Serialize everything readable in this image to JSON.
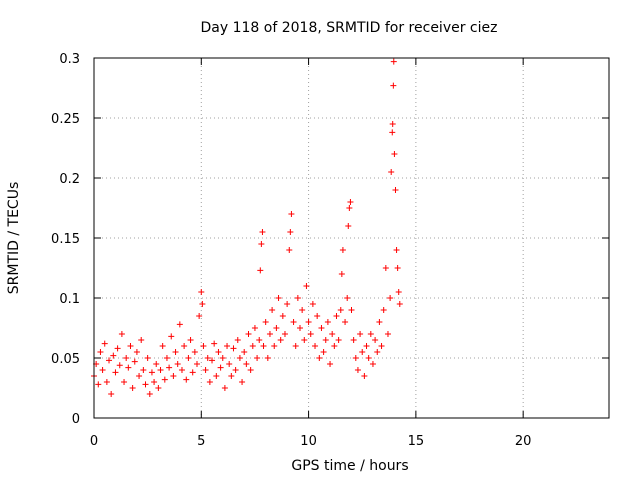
{
  "chart_data": {
    "type": "scatter",
    "title": "Day 118 of 2018, SRMTID for receiver ciez",
    "xlabel": "GPS time / hours",
    "ylabel": "SRMTID / TECUs",
    "xlim": [
      0,
      24
    ],
    "ylim": [
      0,
      0.3
    ],
    "xticks": [
      0,
      5,
      10,
      15,
      20
    ],
    "yticks": [
      0,
      0.05,
      0.1,
      0.15,
      0.2,
      0.25,
      0.3
    ],
    "xtick_labels": [
      "0",
      "5",
      "10",
      "15",
      "20"
    ],
    "ytick_labels": [
      "0",
      "0.05",
      "0.1",
      "0.15",
      "0.2",
      "0.25",
      "0.3"
    ],
    "grid": true,
    "marker": "+",
    "color": "#ff0000",
    "series": [
      {
        "name": "SRMTID",
        "points": [
          [
            0.0,
            0.035
          ],
          [
            0.1,
            0.045
          ],
          [
            0.2,
            0.028
          ],
          [
            0.3,
            0.055
          ],
          [
            0.4,
            0.04
          ],
          [
            0.5,
            0.062
          ],
          [
            0.6,
            0.03
          ],
          [
            0.7,
            0.048
          ],
          [
            0.8,
            0.02
          ],
          [
            0.9,
            0.052
          ],
          [
            1.0,
            0.038
          ],
          [
            1.1,
            0.058
          ],
          [
            1.2,
            0.044
          ],
          [
            1.3,
            0.07
          ],
          [
            1.4,
            0.03
          ],
          [
            1.5,
            0.05
          ],
          [
            1.6,
            0.042
          ],
          [
            1.7,
            0.06
          ],
          [
            1.8,
            0.025
          ],
          [
            1.9,
            0.047
          ],
          [
            2.0,
            0.055
          ],
          [
            2.1,
            0.035
          ],
          [
            2.2,
            0.065
          ],
          [
            2.3,
            0.04
          ],
          [
            2.4,
            0.028
          ],
          [
            2.5,
            0.05
          ],
          [
            2.6,
            0.02
          ],
          [
            2.7,
            0.038
          ],
          [
            2.8,
            0.03
          ],
          [
            2.9,
            0.045
          ],
          [
            3.0,
            0.025
          ],
          [
            3.1,
            0.04
          ],
          [
            3.2,
            0.06
          ],
          [
            3.3,
            0.032
          ],
          [
            3.4,
            0.05
          ],
          [
            3.5,
            0.042
          ],
          [
            3.6,
            0.068
          ],
          [
            3.7,
            0.035
          ],
          [
            3.8,
            0.055
          ],
          [
            3.9,
            0.045
          ],
          [
            4.0,
            0.078
          ],
          [
            4.1,
            0.04
          ],
          [
            4.2,
            0.06
          ],
          [
            4.3,
            0.032
          ],
          [
            4.4,
            0.05
          ],
          [
            4.5,
            0.065
          ],
          [
            4.6,
            0.038
          ],
          [
            4.7,
            0.055
          ],
          [
            4.8,
            0.045
          ],
          [
            4.9,
            0.085
          ],
          [
            5.0,
            0.105
          ],
          [
            5.05,
            0.095
          ],
          [
            5.1,
            0.06
          ],
          [
            5.2,
            0.04
          ],
          [
            5.3,
            0.05
          ],
          [
            5.4,
            0.03
          ],
          [
            5.5,
            0.048
          ],
          [
            5.6,
            0.062
          ],
          [
            5.7,
            0.035
          ],
          [
            5.8,
            0.055
          ],
          [
            5.9,
            0.042
          ],
          [
            6.0,
            0.05
          ],
          [
            6.1,
            0.025
          ],
          [
            6.2,
            0.06
          ],
          [
            6.3,
            0.045
          ],
          [
            6.4,
            0.035
          ],
          [
            6.5,
            0.058
          ],
          [
            6.6,
            0.04
          ],
          [
            6.7,
            0.065
          ],
          [
            6.8,
            0.05
          ],
          [
            6.9,
            0.03
          ],
          [
            7.0,
            0.055
          ],
          [
            7.1,
            0.045
          ],
          [
            7.2,
            0.07
          ],
          [
            7.3,
            0.04
          ],
          [
            7.4,
            0.06
          ],
          [
            7.5,
            0.075
          ],
          [
            7.6,
            0.05
          ],
          [
            7.7,
            0.065
          ],
          [
            7.75,
            0.123
          ],
          [
            7.8,
            0.145
          ],
          [
            7.85,
            0.155
          ],
          [
            7.9,
            0.06
          ],
          [
            8.0,
            0.08
          ],
          [
            8.1,
            0.05
          ],
          [
            8.2,
            0.07
          ],
          [
            8.3,
            0.09
          ],
          [
            8.4,
            0.06
          ],
          [
            8.5,
            0.075
          ],
          [
            8.6,
            0.1
          ],
          [
            8.7,
            0.065
          ],
          [
            8.8,
            0.085
          ],
          [
            8.9,
            0.07
          ],
          [
            9.0,
            0.095
          ],
          [
            9.1,
            0.14
          ],
          [
            9.15,
            0.155
          ],
          [
            9.2,
            0.17
          ],
          [
            9.3,
            0.08
          ],
          [
            9.4,
            0.06
          ],
          [
            9.5,
            0.1
          ],
          [
            9.6,
            0.075
          ],
          [
            9.7,
            0.09
          ],
          [
            9.8,
            0.065
          ],
          [
            9.9,
            0.11
          ],
          [
            10.0,
            0.08
          ],
          [
            10.1,
            0.07
          ],
          [
            10.2,
            0.095
          ],
          [
            10.3,
            0.06
          ],
          [
            10.4,
            0.085
          ],
          [
            10.5,
            0.05
          ],
          [
            10.6,
            0.075
          ],
          [
            10.7,
            0.055
          ],
          [
            10.8,
            0.065
          ],
          [
            10.9,
            0.08
          ],
          [
            11.0,
            0.045
          ],
          [
            11.1,
            0.07
          ],
          [
            11.2,
            0.06
          ],
          [
            11.3,
            0.085
          ],
          [
            11.4,
            0.065
          ],
          [
            11.5,
            0.09
          ],
          [
            11.55,
            0.12
          ],
          [
            11.6,
            0.14
          ],
          [
            11.7,
            0.08
          ],
          [
            11.8,
            0.1
          ],
          [
            11.85,
            0.16
          ],
          [
            11.9,
            0.175
          ],
          [
            11.95,
            0.18
          ],
          [
            12.0,
            0.09
          ],
          [
            12.1,
            0.065
          ],
          [
            12.2,
            0.05
          ],
          [
            12.3,
            0.04
          ],
          [
            12.4,
            0.07
          ],
          [
            12.5,
            0.055
          ],
          [
            12.6,
            0.035
          ],
          [
            12.7,
            0.06
          ],
          [
            12.8,
            0.05
          ],
          [
            12.9,
            0.07
          ],
          [
            13.0,
            0.045
          ],
          [
            13.1,
            0.065
          ],
          [
            13.2,
            0.055
          ],
          [
            13.3,
            0.08
          ],
          [
            13.4,
            0.06
          ],
          [
            13.5,
            0.09
          ],
          [
            13.6,
            0.125
          ],
          [
            13.7,
            0.07
          ],
          [
            13.8,
            0.1
          ],
          [
            13.85,
            0.205
          ],
          [
            13.9,
            0.238
          ],
          [
            13.92,
            0.245
          ],
          [
            13.95,
            0.277
          ],
          [
            13.97,
            0.297
          ],
          [
            14.0,
            0.22
          ],
          [
            14.05,
            0.19
          ],
          [
            14.1,
            0.14
          ],
          [
            14.15,
            0.125
          ],
          [
            14.2,
            0.105
          ],
          [
            14.25,
            0.095
          ]
        ]
      }
    ]
  }
}
